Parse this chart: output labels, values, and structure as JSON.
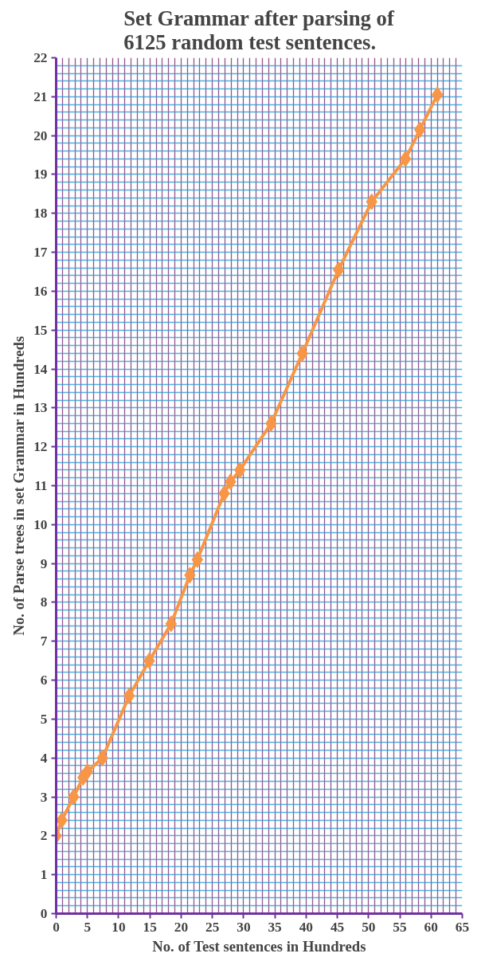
{
  "chart_data": {
    "type": "line",
    "title": "Set Grammar after parsing of 6125 random test sentences.",
    "xlabel": "No. of Test sentences in Hundreds",
    "ylabel": "No. of Parse trees in set Grammar in Hundreds",
    "xlim": [
      0,
      65
    ],
    "xticks": [
      0,
      {
        "value": 1,
        "label": null
      },
      {
        "value": 2,
        "label": null
      },
      {
        "value": 3,
        "label": null
      },
      {
        "value": 4,
        "label": null
      },
      5,
      {
        "value": 6,
        "label": null
      },
      {
        "value": 7,
        "label": null
      },
      {
        "value": 8,
        "label": null
      },
      {
        "value": 9,
        "label": null
      },
      10,
      {
        "value": 11,
        "label": null
      },
      {
        "value": 12,
        "label": null
      },
      {
        "value": 13,
        "label": null
      },
      {
        "value": 14,
        "label": null
      },
      15,
      {
        "value": 16,
        "label": null
      },
      {
        "value": 17,
        "label": null
      },
      {
        "value": 18,
        "label": null
      },
      {
        "value": 19,
        "label": null
      },
      20,
      {
        "value": 21,
        "label": null
      },
      {
        "value": 22,
        "label": null
      },
      {
        "value": 23,
        "label": null
      },
      {
        "value": 24,
        "label": null
      },
      25,
      {
        "value": 26,
        "label": null
      },
      {
        "value": 27,
        "label": null
      },
      {
        "value": 28,
        "label": null
      },
      {
        "value": 29,
        "label": null
      },
      30,
      {
        "value": 31,
        "label": null
      },
      {
        "value": 32,
        "label": null
      },
      {
        "value": 33,
        "label": null
      },
      {
        "value": 34,
        "label": null
      },
      35,
      {
        "value": 36,
        "label": null
      },
      {
        "value": 37,
        "label": null
      },
      {
        "value": 38,
        "label": null
      },
      {
        "value": 39,
        "label": null
      },
      40,
      {
        "value": 41,
        "label": null
      },
      {
        "value": 42,
        "label": null
      },
      {
        "value": 43,
        "label": null
      },
      {
        "value": 44,
        "label": null
      },
      45,
      {
        "value": 46,
        "label": null
      },
      {
        "value": 47,
        "label": null
      },
      {
        "value": 48,
        "label": null
      },
      {
        "value": 49,
        "label": null
      },
      50,
      {
        "value": 51,
        "label": null
      },
      {
        "value": 52,
        "label": null
      },
      {
        "value": 53,
        "label": null
      },
      {
        "value": 54,
        "label": null
      },
      55,
      {
        "value": 56,
        "label": null
      },
      {
        "value": 57,
        "label": null
      },
      {
        "value": 58,
        "label": null
      },
      {
        "value": 59,
        "label": null
      },
      60,
      {
        "value": 61,
        "label": null
      },
      {
        "value": 62,
        "label": null
      },
      {
        "value": 63,
        "label": null
      },
      {
        "value": 64,
        "label": null
      },
      65
    ],
    "ylim": [
      0,
      22
    ],
    "yticks": [
      0,
      {
        "value": 0.2,
        "label": null
      },
      {
        "value": 0.4,
        "label": null
      },
      {
        "value": 0.6,
        "label": null
      },
      {
        "value": 0.8,
        "label": null
      },
      1,
      {
        "value": 1.2,
        "label": null
      },
      {
        "value": 1.4,
        "label": null
      },
      {
        "value": 1.6,
        "label": null
      },
      {
        "value": 1.8,
        "label": null
      },
      2,
      {
        "value": 2.2,
        "label": null
      },
      {
        "value": 2.4,
        "label": null
      },
      {
        "value": 2.6,
        "label": null
      },
      {
        "value": 2.8,
        "label": null
      },
      3,
      {
        "value": 3.2,
        "label": null
      },
      {
        "value": 3.4,
        "label": null
      },
      {
        "value": 3.6,
        "label": null
      },
      {
        "value": 3.8,
        "label": null
      },
      4,
      {
        "value": 4.2,
        "label": null
      },
      {
        "value": 4.4,
        "label": null
      },
      {
        "value": 4.6,
        "label": null
      },
      {
        "value": 4.8,
        "label": null
      },
      5,
      {
        "value": 5.2,
        "label": null
      },
      {
        "value": 5.4,
        "label": null
      },
      {
        "value": 5.6,
        "label": null
      },
      {
        "value": 5.8,
        "label": null
      },
      6,
      {
        "value": 6.2,
        "label": null
      },
      {
        "value": 6.4,
        "label": null
      },
      {
        "value": 6.6,
        "label": null
      },
      {
        "value": 6.8,
        "label": null
      },
      7,
      {
        "value": 7.2,
        "label": null
      },
      {
        "value": 7.4,
        "label": null
      },
      {
        "value": 7.6,
        "label": null
      },
      {
        "value": 7.8,
        "label": null
      },
      8,
      {
        "value": 8.2,
        "label": null
      },
      {
        "value": 8.4,
        "label": null
      },
      {
        "value": 8.6,
        "label": null
      },
      {
        "value": 8.8,
        "label": null
      },
      9,
      {
        "value": 9.2,
        "label": null
      },
      {
        "value": 9.4,
        "label": null
      },
      {
        "value": 9.6,
        "label": null
      },
      {
        "value": 9.8,
        "label": null
      },
      10,
      {
        "value": 10.2,
        "label": null
      },
      {
        "value": 10.4,
        "label": null
      },
      {
        "value": 10.6,
        "label": null
      },
      {
        "value": 10.8,
        "label": null
      },
      11,
      {
        "value": 11.2,
        "label": null
      },
      {
        "value": 11.4,
        "label": null
      },
      {
        "value": 11.6,
        "label": null
      },
      {
        "value": 11.8,
        "label": null
      },
      12,
      {
        "value": 12.2,
        "label": null
      },
      {
        "value": 12.4,
        "label": null
      },
      {
        "value": 12.6,
        "label": null
      },
      {
        "value": 12.8,
        "label": null
      },
      13,
      {
        "value": 13.2,
        "label": null
      },
      {
        "value": 13.4,
        "label": null
      },
      {
        "value": 13.6,
        "label": null
      },
      {
        "value": 13.8,
        "label": null
      },
      14,
      {
        "value": 14.2,
        "label": null
      },
      {
        "value": 14.4,
        "label": null
      },
      {
        "value": 14.6,
        "label": null
      },
      {
        "value": 14.8,
        "label": null
      },
      15,
      {
        "value": 15.2,
        "label": null
      },
      {
        "value": 15.4,
        "label": null
      },
      {
        "value": 15.6,
        "label": null
      },
      {
        "value": 15.8,
        "label": null
      },
      16,
      {
        "value": 16.2,
        "label": null
      },
      {
        "value": 16.4,
        "label": null
      },
      {
        "value": 16.6,
        "label": null
      },
      {
        "value": 16.8,
        "label": null
      },
      17,
      {
        "value": 17.2,
        "label": null
      },
      {
        "value": 17.4,
        "label": null
      },
      {
        "value": 17.6,
        "label": null
      },
      {
        "value": 17.8,
        "label": null
      },
      18,
      {
        "value": 18.2,
        "label": null
      },
      {
        "value": 18.4,
        "label": null
      },
      {
        "value": 18.6,
        "label": null
      },
      {
        "value": 18.8,
        "label": null
      },
      19,
      {
        "value": 19.2,
        "label": null
      },
      {
        "value": 19.4,
        "label": null
      },
      {
        "value": 19.6,
        "label": null
      },
      {
        "value": 19.8,
        "label": null
      },
      20,
      {
        "value": 20.2,
        "label": null
      },
      {
        "value": 20.4,
        "label": null
      },
      {
        "value": 20.6,
        "label": null
      },
      {
        "value": 20.8,
        "label": null
      },
      21,
      {
        "value": 21.2,
        "label": null
      },
      {
        "value": 21.4,
        "label": null
      },
      {
        "value": 21.6,
        "label": null
      },
      {
        "value": 21.8,
        "label": null
      },
      22
    ],
    "grid": true,
    "marker": "diamond",
    "line_style": "solid",
    "series": [
      {
        "color": "#f79646",
        "x": [
          0,
          0.9,
          2.8,
          4.3,
          5,
          7.4,
          11.7,
          14.9,
          18.4,
          21.4,
          22.6,
          26.9,
          27.9,
          29.4,
          34.4,
          39.4,
          45.2,
          50.5,
          55.9,
          58.2,
          61
        ],
        "values": [
          2.0,
          2.4,
          3.0,
          3.5,
          3.65,
          4.0,
          5.6,
          6.5,
          7.45,
          8.7,
          9.1,
          10.8,
          11.1,
          11.4,
          12.6,
          14.4,
          16.55,
          18.3,
          19.4,
          20.15,
          21.05
        ]
      }
    ]
  }
}
